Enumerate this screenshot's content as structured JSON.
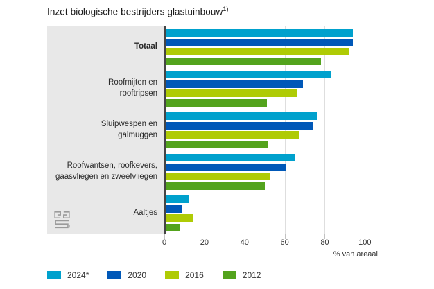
{
  "title": {
    "text": "Inzet biologische bestrijders glastuinbouw",
    "superscript": "1)"
  },
  "x_axis": {
    "ticks": [
      0,
      20,
      40,
      60,
      80,
      100
    ],
    "label": "% van areaal"
  },
  "legend": [
    {
      "label": "2024*",
      "color": "#00a1cd"
    },
    {
      "label": "2020",
      "color": "#0058b8"
    },
    {
      "label": "2016",
      "color": "#afcb05"
    },
    {
      "label": "2012",
      "color": "#53a31d"
    }
  ],
  "categories_display": [
    [
      "Totaal"
    ],
    [
      "Roofmijten en",
      "rooftripsen"
    ],
    [
      "Sluipwespen en",
      "galmuggen"
    ],
    [
      "Roofwantsen, roofkevers,",
      "gaasvliegen en zweefvliegen"
    ],
    [
      "Aaltjes"
    ]
  ],
  "logo": {
    "name": "CBS"
  },
  "colors": {
    "panel_background": "#e8e8e8",
    "axis_line": "#454545",
    "gridline": "#dedede"
  },
  "chart_data": {
    "type": "bar",
    "orientation": "horizontal",
    "title": "Inzet biologische bestrijders glastuinbouw 1)",
    "xlabel": "% van areaal",
    "xlim": [
      0,
      100
    ],
    "grid": true,
    "gridlines_at": [
      20,
      40,
      60,
      80,
      100
    ],
    "legend_position": "bottom",
    "categories": [
      "Totaal",
      "Roofmijten en rooftripsen",
      "Sluipwespen en galmuggen",
      "Roofwantsen, roofkevers, gaasvliegen en zweefvliegen",
      "Aaltjes"
    ],
    "series": [
      {
        "name": "2024*",
        "color": "#00a1cd",
        "values": [
          94,
          83,
          76,
          65,
          12
        ]
      },
      {
        "name": "2020",
        "color": "#0058b8",
        "values": [
          94,
          69,
          74,
          61,
          9
        ]
      },
      {
        "name": "2016",
        "color": "#afcb05",
        "values": [
          92,
          66,
          67,
          53,
          14
        ]
      },
      {
        "name": "2012",
        "color": "#53a31d",
        "values": [
          78,
          51,
          52,
          50,
          8
        ]
      }
    ]
  }
}
